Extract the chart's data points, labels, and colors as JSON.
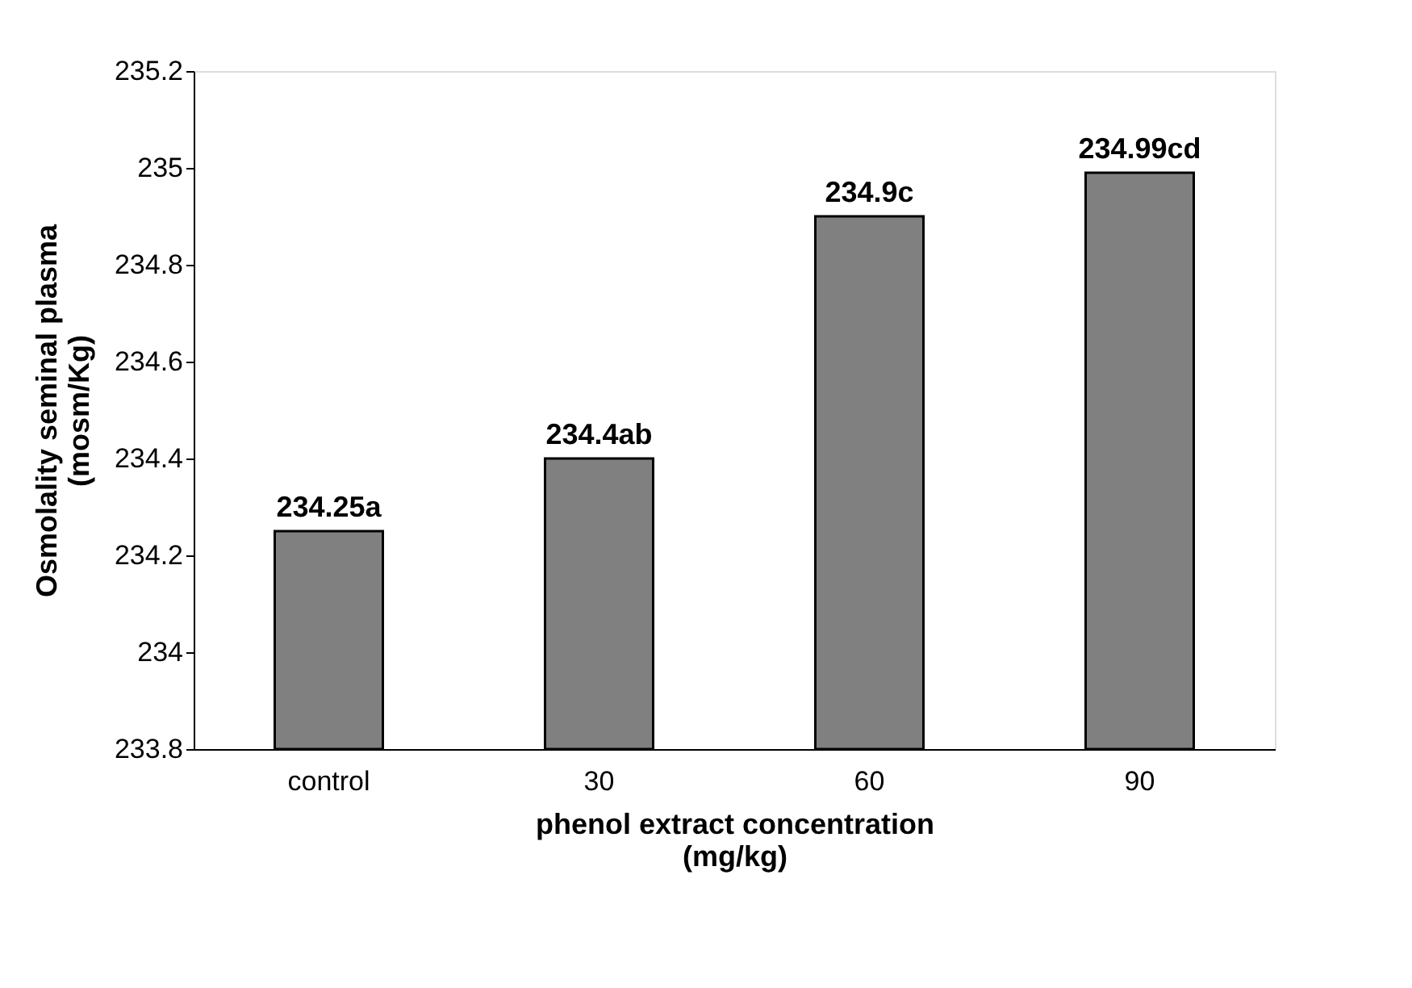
{
  "chart_data": {
    "type": "bar",
    "categories": [
      "control",
      "30",
      "60",
      "90"
    ],
    "values": [
      234.25,
      234.4,
      234.9,
      234.99
    ],
    "value_labels": [
      "234.25a",
      "234.4ab",
      "234.9c",
      "234.99cd"
    ],
    "color": "#808080",
    "xlabel": [
      "phenol extract concentration",
      "(mg/kg)"
    ],
    "ylabel": [
      "Osmolality seminal plasma",
      "(mosm/Kg)"
    ],
    "ylim": [
      233.8,
      235.2
    ],
    "yticks": [
      233.8,
      234,
      234.2,
      234.4,
      234.6,
      234.8,
      235,
      235.2
    ],
    "grid": false
  }
}
